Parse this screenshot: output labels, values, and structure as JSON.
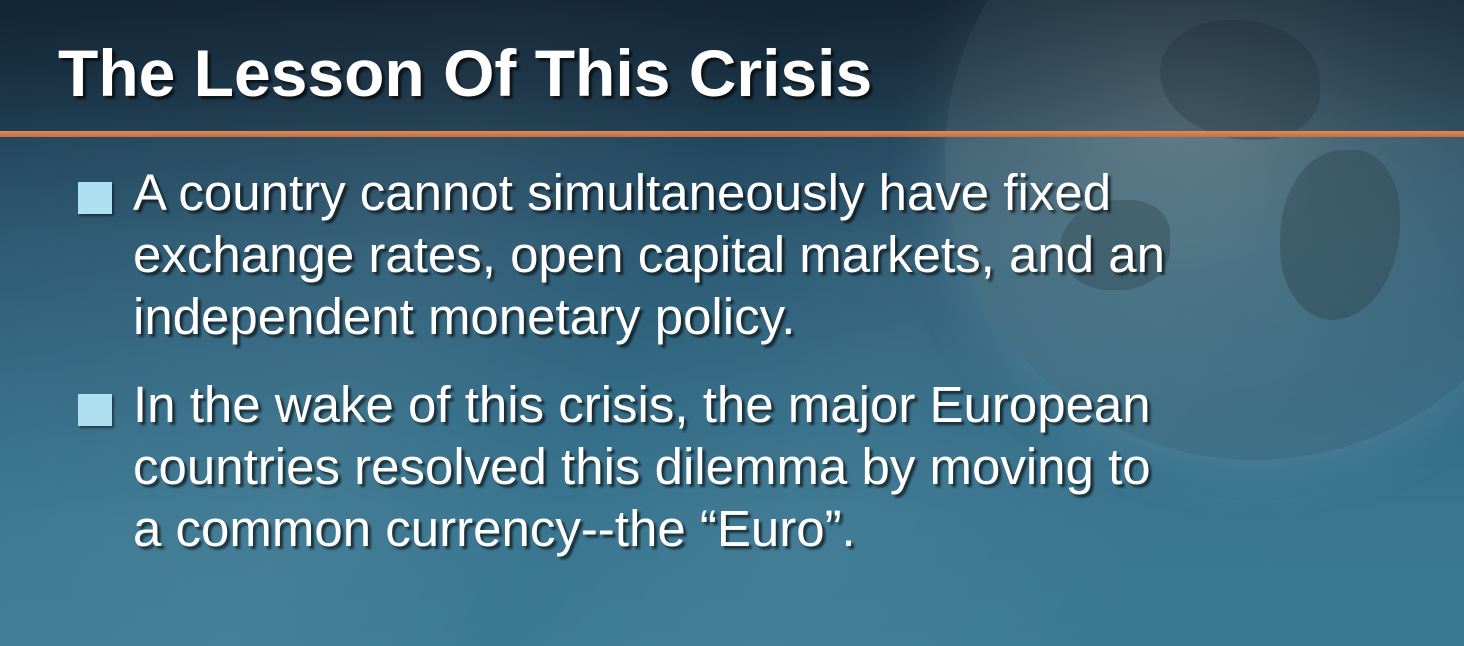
{
  "slide": {
    "title": "The Lesson Of This Crisis",
    "bullets": [
      {
        "lines": [
          "A country cannot simultaneously have fixed",
          "exchange rates, open capital markets, and an",
          "independent monetary policy."
        ]
      },
      {
        "lines": [
          "In the wake of this crisis, the major European",
          "countries resolved this dilemma by moving to",
          "a common currency--the “Euro”."
        ]
      }
    ]
  },
  "colors": {
    "accent_rule": "#d97c4a",
    "bullet_marker": "#aee0f2",
    "text": "#ffffff",
    "background": "#2f627c"
  },
  "icons": {
    "bullet": "square-bullet-icon",
    "background_art": "globe-icon"
  }
}
